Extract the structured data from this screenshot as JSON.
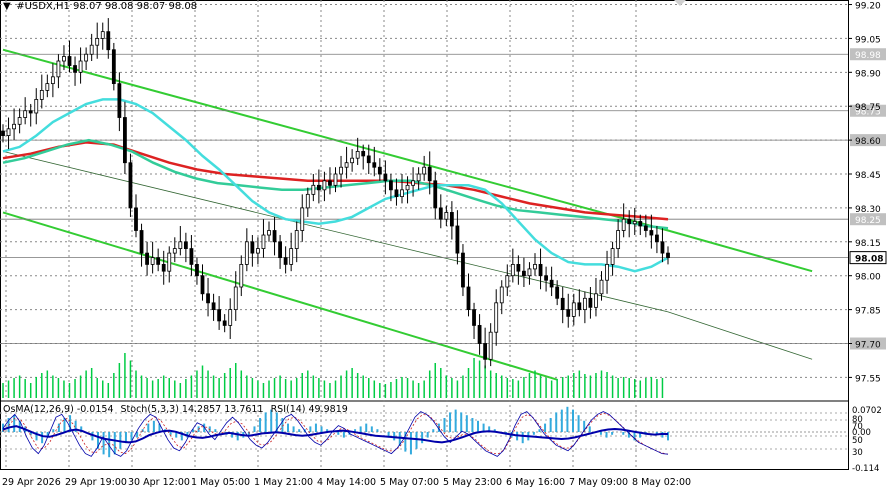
{
  "header": {
    "symbol": "#USDX,H1",
    "ohlc": "98.07 98.08 98.07 98.08"
  },
  "price_axis": {
    "min": 97.45,
    "max": 99.22,
    "ticks": [
      "99.20",
      "99.05",
      "98.90",
      "98.75",
      "98.60",
      "98.45",
      "98.30",
      "98.15",
      "98.00",
      "97.85",
      "97.70",
      "97.55"
    ],
    "tick_values": [
      99.2,
      99.05,
      98.9,
      98.75,
      98.6,
      98.45,
      98.3,
      98.15,
      98.0,
      97.85,
      97.7,
      97.55
    ],
    "levels": [
      {
        "label": "98.98",
        "value": 98.98
      },
      {
        "label": "98.73",
        "value": 98.73
      },
      {
        "label": "98.60",
        "value": 98.6
      },
      {
        "label": "98.25",
        "value": 98.25
      },
      {
        "label": "98.08",
        "value": 98.08,
        "current": true
      },
      {
        "label": "97.70",
        "value": 97.7
      }
    ]
  },
  "time_axis": {
    "labels": [
      "29 Apr 2026",
      "29 Apr 19:00",
      "30 Apr 12:00",
      "1 May 05:00",
      "1 May 21:00",
      "4 May 14:00",
      "5 May 07:00",
      "5 May 23:00",
      "6 May 16:00",
      "7 May 09:00",
      "8 May 02:00"
    ]
  },
  "indicator_panel": {
    "labels": {
      "osma": "OsMA(12,26,9) -0.0154",
      "stoch": "Stoch(5,3,3) 14.2857 13.7611",
      "rsi": "RSI(14) 49.9819"
    },
    "scale_ticks": [
      "0.0702",
      "80",
      "70",
      "0.00",
      "50",
      "30",
      "-0.114"
    ]
  },
  "colors": {
    "background": "#ffffff",
    "bull_candle": "#000000",
    "bear_candle": "#000000",
    "channel": "#33cc33",
    "ema200": "#dd2222",
    "ema144": "#33cc99",
    "ema50": "#44dddd",
    "volume": "#00cc44",
    "osma_hist": "#33aadd",
    "rsi": "#0000aa",
    "stoch_main": "#0000aa",
    "stoch_signal": "#cc2222",
    "price_label_bg": "#c0c0c0",
    "current_label_bg": "#ffffff"
  },
  "chart_data": {
    "type": "candlestick",
    "title": "#USDX,H1",
    "timeframe": "H1",
    "ylim": [
      97.45,
      99.22
    ],
    "candles_close": [
      98.62,
      98.65,
      98.67,
      98.7,
      98.73,
      98.72,
      98.78,
      98.82,
      98.85,
      98.88,
      98.95,
      98.97,
      98.93,
      98.9,
      98.95,
      98.98,
      99.02,
      99.05,
      99.08,
      99.0,
      98.85,
      98.7,
      98.5,
      98.3,
      98.2,
      98.1,
      98.05,
      98.08,
      98.05,
      98.02,
      98.1,
      98.12,
      98.15,
      98.12,
      98.05,
      98.0,
      97.92,
      97.88,
      97.85,
      97.8,
      97.78,
      97.85,
      97.95,
      98.05,
      98.15,
      98.1,
      98.12,
      98.18,
      98.2,
      98.15,
      98.08,
      98.05,
      98.12,
      98.2,
      98.3,
      98.36,
      98.4,
      98.38,
      98.42,
      98.4,
      98.45,
      98.48,
      98.5,
      98.52,
      98.55,
      98.53,
      98.5,
      98.48,
      98.45,
      98.42,
      98.38,
      98.35,
      98.38,
      98.4,
      98.42,
      98.45,
      98.48,
      98.42,
      98.3,
      98.25,
      98.28,
      98.22,
      98.1,
      97.95,
      97.85,
      97.78,
      97.7,
      97.63,
      97.75,
      97.88,
      97.95,
      98.0,
      98.05,
      98.02,
      98.0,
      98.03,
      98.05,
      98.0,
      97.98,
      97.95,
      97.9,
      97.85,
      97.82,
      97.88,
      97.85,
      97.9,
      97.86,
      97.92,
      97.98,
      98.05,
      98.12,
      98.2,
      98.25,
      98.23,
      98.24,
      98.22,
      98.2,
      98.18,
      98.15,
      98.1,
      98.08
    ],
    "ema50": [
      98.55,
      98.57,
      98.62,
      98.68,
      98.72,
      98.76,
      98.78,
      98.78,
      98.76,
      98.72,
      98.66,
      98.6,
      98.53,
      98.47,
      98.4,
      98.33,
      98.28,
      98.25,
      98.24,
      98.23,
      98.24,
      98.26,
      98.3,
      98.34,
      98.36,
      98.38,
      98.4,
      98.4,
      98.4,
      98.38,
      98.32,
      98.24,
      98.16,
      98.1,
      98.06,
      98.05,
      98.05,
      98.04,
      98.02,
      98.04,
      98.08
    ],
    "ema144": [
      98.5,
      98.52,
      98.55,
      98.58,
      98.6,
      98.58,
      98.55,
      98.5,
      98.46,
      98.43,
      98.41,
      98.4,
      98.39,
      98.38,
      98.38,
      98.39,
      98.4,
      98.41,
      98.42,
      98.42,
      98.4,
      98.37,
      98.34,
      98.31,
      98.29,
      98.28,
      98.27,
      98.26,
      98.25,
      98.24,
      98.22,
      98.21
    ],
    "ema200": [
      98.52,
      98.54,
      98.57,
      98.59,
      98.58,
      98.54,
      98.5,
      98.47,
      98.45,
      98.44,
      98.43,
      98.42,
      98.42,
      98.42,
      98.42,
      98.41,
      98.4,
      98.38,
      98.35,
      98.32,
      98.3,
      98.28,
      98.27,
      98.26,
      98.25
    ],
    "channel": {
      "upper": [
        [
          0,
          99.0
        ],
        [
          120,
          98.2
        ],
        [
          146,
          98.02
        ]
      ],
      "middle": [
        [
          0,
          98.55
        ],
        [
          120,
          97.84
        ],
        [
          146,
          97.63
        ]
      ],
      "lower": [
        [
          0,
          98.28
        ],
        [
          100,
          97.54
        ]
      ]
    },
    "volume_relative": [
      0.3,
      0.35,
      0.4,
      0.45,
      0.38,
      0.3,
      0.42,
      0.5,
      0.55,
      0.45,
      0.4,
      0.35,
      0.3,
      0.38,
      0.45,
      0.55,
      0.6,
      0.4,
      0.35,
      0.3,
      0.5,
      0.7,
      0.9,
      0.75,
      0.55,
      0.45,
      0.4,
      0.35,
      0.38,
      0.45,
      0.4,
      0.35,
      0.3,
      0.38,
      0.45,
      0.55,
      0.65,
      0.55,
      0.45,
      0.4,
      0.5,
      0.6,
      0.7,
      0.55,
      0.45,
      0.4,
      0.35,
      0.3,
      0.35,
      0.4,
      0.45,
      0.38,
      0.35,
      0.4,
      0.5,
      0.55,
      0.45,
      0.4,
      0.35,
      0.3,
      0.35,
      0.45,
      0.55,
      0.6,
      0.5,
      0.45,
      0.4,
      0.35,
      0.3,
      0.28,
      0.32,
      0.38,
      0.42,
      0.4,
      0.35,
      0.3,
      0.35,
      0.55,
      0.7,
      0.6,
      0.45,
      0.4,
      0.35,
      0.45,
      0.6,
      0.8,
      0.75,
      0.65,
      0.55,
      0.5,
      0.45,
      0.4,
      0.38,
      0.35,
      0.42,
      0.5,
      0.55,
      0.45,
      0.4,
      0.35,
      0.38,
      0.42,
      0.45,
      0.5,
      0.55,
      0.48,
      0.45,
      0.5,
      0.55,
      0.52,
      0.45,
      0.4,
      0.42,
      0.4,
      0.38,
      0.35,
      0.4,
      0.42,
      0.38,
      0.4
    ],
    "osma_relative": [
      0.3,
      0.5,
      0.6,
      0.4,
      0.2,
      -0.1,
      -0.3,
      -0.4,
      -0.2,
      0.1,
      0.3,
      0.5,
      0.6,
      0.4,
      0.2,
      0.0,
      -0.3,
      -0.6,
      -0.8,
      -0.9,
      -0.8,
      -0.6,
      -0.4,
      -0.3,
      -0.2,
      0.1,
      0.3,
      0.4,
      0.3,
      0.1,
      -0.1,
      -0.2,
      -0.3,
      -0.2,
      0.1,
      0.2,
      0.3,
      0.2,
      0.1,
      0.0,
      -0.1,
      -0.2,
      -0.3,
      -0.2,
      -0.1,
      0.2,
      0.5,
      0.7,
      0.8,
      0.7,
      0.5,
      0.3,
      0.2,
      0.1,
      0.1,
      0.2,
      0.3,
      0.2,
      0.1,
      0.0,
      -0.1,
      -0.2,
      -0.1,
      0.1,
      0.2,
      0.3,
      0.2,
      0.1,
      0.0,
      -0.2,
      -0.3,
      -0.5,
      -0.7,
      -0.8,
      -0.6,
      -0.4,
      -0.2,
      0.1,
      0.3,
      0.5,
      0.7,
      0.8,
      0.7,
      0.6,
      0.5,
      0.4,
      0.3,
      0.2,
      0.1,
      0.0,
      -0.1,
      -0.2,
      -0.3,
      -0.4,
      -0.3,
      -0.1,
      0.1,
      0.3,
      0.5,
      0.7,
      0.8,
      0.9,
      0.8,
      0.6,
      0.4,
      0.2,
      0.0,
      -0.1,
      -0.2,
      -0.1,
      0.0,
      -0.1,
      -0.2,
      -0.3,
      -0.2,
      -0.1,
      0.0,
      -0.1,
      -0.2,
      -0.3
    ],
    "stoch_main": [
      60,
      75,
      85,
      70,
      45,
      25,
      15,
      30,
      55,
      80,
      85,
      70,
      50,
      30,
      15,
      10,
      25,
      45,
      30,
      15,
      10,
      20,
      40,
      60,
      75,
      85,
      80,
      60,
      40,
      25,
      20,
      35,
      55,
      70,
      65,
      50,
      40,
      55,
      70,
      80,
      70,
      55,
      40,
      30,
      25,
      35,
      50,
      65,
      80,
      85,
      75,
      60,
      45,
      35,
      30,
      40,
      55,
      65,
      60,
      50,
      45,
      40,
      35,
      30,
      25,
      20,
      15,
      25,
      40,
      60,
      80,
      90,
      85,
      75,
      60,
      45,
      35,
      45,
      55,
      50,
      40,
      30,
      20,
      15,
      10,
      20,
      40,
      65,
      85,
      90,
      80,
      65,
      50,
      40,
      30,
      25,
      20,
      30,
      45,
      60,
      75,
      85,
      90,
      85,
      75,
      65,
      55,
      45,
      35,
      30,
      25,
      20,
      15,
      14
    ],
    "stoch_signal": [
      55,
      65,
      78,
      76,
      62,
      42,
      25,
      24,
      35,
      55,
      72,
      78,
      68,
      50,
      32,
      18,
      17,
      28,
      33,
      30,
      18,
      15,
      23,
      40,
      58,
      73,
      80,
      75,
      60,
      42,
      28,
      25,
      37,
      53,
      63,
      62,
      52,
      48,
      55,
      68,
      73,
      68,
      55,
      42,
      32,
      30,
      37,
      50,
      65,
      77,
      80,
      73,
      60,
      47,
      37,
      35,
      42,
      53,
      60,
      58,
      52,
      45,
      40,
      35,
      30,
      25,
      20,
      20,
      27,
      42,
      60,
      77,
      85,
      83,
      73,
      60,
      47,
      42,
      45,
      50,
      48,
      40,
      30,
      22,
      15,
      15,
      23,
      42,
      63,
      80,
      85,
      78,
      65,
      52,
      40,
      32,
      25,
      25,
      32,
      45,
      60,
      73,
      83,
      87,
      83,
      75,
      65,
      55,
      45,
      37,
      30,
      25,
      20,
      16,
      14
    ],
    "rsi_series": [
      58,
      62,
      64,
      60,
      55,
      50,
      46,
      45,
      48,
      52,
      56,
      58,
      55,
      50,
      46,
      42,
      40,
      38,
      36,
      35,
      37,
      42,
      48,
      52,
      55,
      56,
      54,
      50,
      46,
      44,
      43,
      45,
      48,
      50,
      52,
      50,
      48,
      47,
      49,
      51,
      52,
      53,
      52,
      50,
      48,
      47,
      48,
      50,
      52,
      54,
      55,
      56,
      55,
      53,
      51,
      49,
      47,
      46,
      45,
      44,
      43,
      42,
      41,
      40,
      38,
      36,
      35,
      37,
      40,
      44,
      48,
      52,
      54,
      55,
      54,
      52,
      50,
      48,
      47,
      46,
      45,
      44,
      43,
      42,
      41,
      42,
      44,
      47,
      50,
      53,
      56,
      58,
      59,
      58,
      56,
      54,
      52,
      50,
      49,
      50,
      50
    ]
  }
}
